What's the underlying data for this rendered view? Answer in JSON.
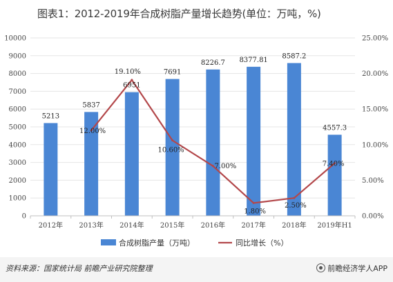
{
  "title": "图表1：2012-2019年合成树脂产量增长趋势(单位：万吨，%)",
  "colors": {
    "bar": "#4a86d4",
    "line": "#b3474a",
    "grid": "#e5e5e5",
    "axis": "#bfbfbf"
  },
  "chart_data": {
    "type": "bar",
    "categories": [
      "2012年",
      "2013年",
      "2014年",
      "2015年",
      "2016年",
      "2017年",
      "2018年",
      "2019年H1"
    ],
    "series": [
      {
        "name": "合成树脂产量（万吨）",
        "type": "bar",
        "axis": "left",
        "values": [
          5213,
          5837,
          6951,
          7691,
          8226.7,
          8377.81,
          8587.2,
          4557.3
        ],
        "labels": [
          "5213",
          "5837",
          "6951",
          "7691",
          "8226.7",
          "8377.81",
          "8587.2",
          "4557.3"
        ]
      },
      {
        "name": "同比增长（%）",
        "type": "line",
        "axis": "right",
        "values": [
          null,
          12.0,
          19.1,
          10.6,
          7.0,
          1.8,
          2.5,
          7.4
        ],
        "labels": [
          "",
          "12.00%",
          "19.10%",
          "10.60%",
          "7.00%",
          "1.80%",
          "2.50%",
          "7.40%"
        ]
      }
    ],
    "ylim": [
      0,
      10000
    ],
    "yticks": [
      "0",
      "1000",
      "2000",
      "3000",
      "4000",
      "5000",
      "6000",
      "7000",
      "8000",
      "9000",
      "10000"
    ],
    "y2lim": [
      0,
      25
    ],
    "y2ticks": [
      "0.00%",
      "5.00%",
      "10.00%",
      "15.00%",
      "20.00%",
      "25.00%"
    ],
    "grid": true,
    "legend": "bottom"
  },
  "footer": {
    "source": "资料来源：国家统计局 前瞻产业研究院整理",
    "brand": "前瞻经济学人APP"
  }
}
